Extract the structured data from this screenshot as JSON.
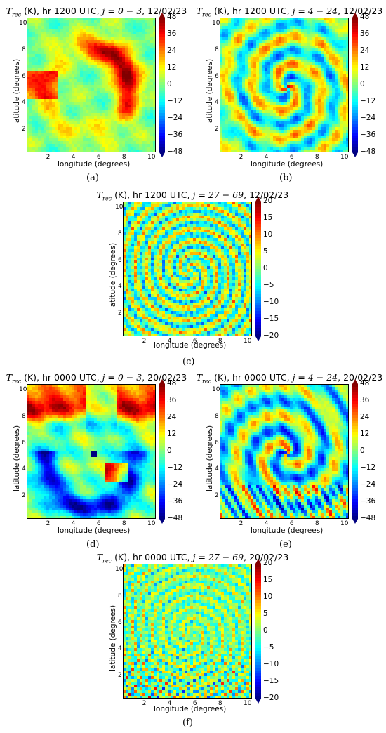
{
  "chart_data": [
    {
      "type": "heatmap",
      "panel_label": "(a)",
      "title": "T_rec (K), hr 1200 UTC, j = 0 − 3, 12/02/23",
      "title_var": "T",
      "title_sub": "rec",
      "title_mid": " (K), hr 1200 UTC, ",
      "title_j": "j = 0 − 3",
      "title_end": ", 12/02/23",
      "xlabel": "longitude (degrees)",
      "ylabel": "latitude (degrees)",
      "x_ticks": [
        "2",
        "4",
        "6",
        "8",
        "10"
      ],
      "y_ticks": [
        "2",
        "4",
        "6",
        "8",
        "10"
      ],
      "xlim": [
        0.3,
        10.5
      ],
      "ylim": [
        0.3,
        10.5
      ],
      "colorbar_ticks": [
        "48",
        "36",
        "24",
        "12",
        "0",
        "−12",
        "−24",
        "−36",
        "−48"
      ],
      "clim": [
        -48,
        48
      ],
      "colormap": "jet",
      "pattern": "large-scale warm spiral band"
    },
    {
      "type": "heatmap",
      "panel_label": "(b)",
      "title": "T_rec (K), hr 1200 UTC, j = 4 − 24, 12/02/23",
      "title_var": "T",
      "title_sub": "rec",
      "title_mid": " (K), hr 1200 UTC, ",
      "title_j": "j = 4 − 24",
      "title_end": ", 12/02/23",
      "xlabel": "longitude (degrees)",
      "ylabel": "latitude (degrees)",
      "x_ticks": [
        "2",
        "4",
        "6",
        "8",
        "10"
      ],
      "y_ticks": [
        "2",
        "4",
        "6",
        "8",
        "10"
      ],
      "xlim": [
        0.3,
        10.5
      ],
      "ylim": [
        0.3,
        10.5
      ],
      "colorbar_ticks": [
        "48",
        "36",
        "24",
        "12",
        "0",
        "−12",
        "−24",
        "−36",
        "−48"
      ],
      "clim": [
        -48,
        48
      ],
      "colormap": "jet",
      "pattern": "medium-scale spiral bands"
    },
    {
      "type": "heatmap",
      "panel_label": "(c)",
      "title": "T_rec (K), hr 1200 UTC, j = 27 − 69, 12/02/23",
      "title_var": "T",
      "title_sub": "rec",
      "title_mid": " (K), hr 1200 UTC, ",
      "title_j": "j = 27 − 69",
      "title_end": ", 12/02/23",
      "xlabel": "longitude (degrees)",
      "ylabel": "latitude (degrees)",
      "x_ticks": [
        "2",
        "4",
        "6",
        "8",
        "10"
      ],
      "y_ticks": [
        "2",
        "4",
        "6",
        "8",
        "10"
      ],
      "xlim": [
        0.3,
        10.5
      ],
      "ylim": [
        0.3,
        10.5
      ],
      "colorbar_ticks": [
        "20",
        "15",
        "10",
        "5",
        "0",
        "−5",
        "−10",
        "−15",
        "−20"
      ],
      "clim": [
        -20,
        20
      ],
      "colormap": "jet",
      "pattern": "fine-scale ripples"
    },
    {
      "type": "heatmap",
      "panel_label": "(d)",
      "title": "T_rec (K), hr 0000 UTC, j = 0 − 3, 20/02/23",
      "title_var": "T",
      "title_sub": "rec",
      "title_mid": " (K), hr 0000 UTC, ",
      "title_j": "j = 0 − 3",
      "title_end": ", 20/02/23",
      "xlabel": "longitude (degrees)",
      "ylabel": "latitude (degrees)",
      "x_ticks": [
        "2",
        "4",
        "6",
        "8",
        "10"
      ],
      "y_ticks": [
        "2",
        "4",
        "6",
        "8",
        "10"
      ],
      "xlim": [
        0.3,
        10.5
      ],
      "ylim": [
        0.3,
        10.5
      ],
      "colorbar_ticks": [
        "48",
        "36",
        "24",
        "12",
        "0",
        "−12",
        "−24",
        "−36",
        "−48"
      ],
      "clim": [
        -48,
        48
      ],
      "colormap": "jet",
      "pattern": "large-scale warm and cold regions with eye"
    },
    {
      "type": "heatmap",
      "panel_label": "(e)",
      "title": "T_rec (K), hr 0000 UTC, j = 4 − 24, 20/02/23",
      "title_var": "T",
      "title_sub": "rec",
      "title_mid": " (K), hr 0000 UTC, ",
      "title_j": "j = 4 − 24",
      "title_end": ", 20/02/23",
      "xlabel": "longitude (degrees)",
      "ylabel": "latitude (degrees)",
      "x_ticks": [
        "2",
        "4",
        "6",
        "8",
        "10"
      ],
      "y_ticks": [
        "2",
        "4",
        "6",
        "8",
        "10"
      ],
      "xlim": [
        0.3,
        10.5
      ],
      "ylim": [
        0.3,
        10.5
      ],
      "colorbar_ticks": [
        "48",
        "36",
        "24",
        "12",
        "0",
        "−12",
        "−24",
        "−36",
        "−48"
      ],
      "clim": [
        -48,
        48
      ],
      "colormap": "jet",
      "pattern": "medium-scale spiral bands with eye"
    },
    {
      "type": "heatmap",
      "panel_label": "(f)",
      "title": "T_rec (K), hr 0000 UTC, j = 27 − 69, 20/02/23",
      "title_var": "T",
      "title_sub": "rec",
      "title_mid": " (K), hr 0000 UTC, ",
      "title_j": "j = 27 − 69",
      "title_end": ", 20/02/23",
      "xlabel": "longitude (degrees)",
      "ylabel": "latitude (degrees)",
      "x_ticks": [
        "2",
        "4",
        "6",
        "8",
        "10"
      ],
      "y_ticks": [
        "2",
        "4",
        "6",
        "8",
        "10"
      ],
      "xlim": [
        0.3,
        10.5
      ],
      "ylim": [
        0.3,
        10.5
      ],
      "colorbar_ticks": [
        "20",
        "15",
        "10",
        "5",
        "0",
        "−5",
        "−10",
        "−15",
        "−20"
      ],
      "clim": [
        -20,
        20
      ],
      "colormap": "jet",
      "pattern": "fine-scale ripples, strong in lower-left"
    }
  ]
}
